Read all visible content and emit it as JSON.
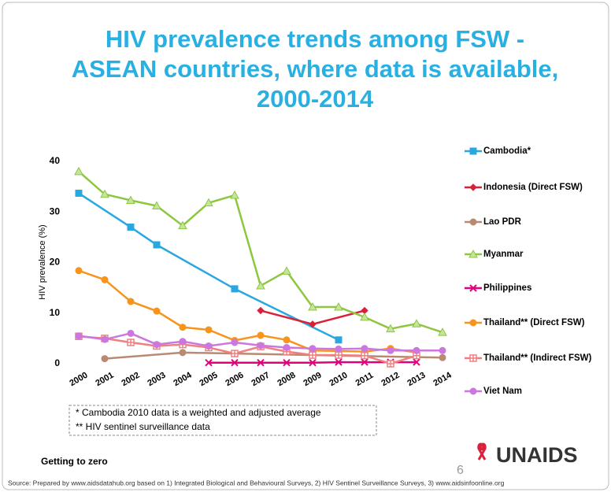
{
  "chart_data": {
    "type": "line",
    "title": "HIV prevalence trends among FSW -\nASEAN countries, where data is available,\n2000-2014",
    "y_label": "HIV prevalence (%)",
    "xlim": [
      2000,
      2014
    ],
    "xticks": [
      2000,
      2001,
      2002,
      2003,
      2004,
      2005,
      2006,
      2007,
      2008,
      2009,
      2010,
      2011,
      2012,
      2013,
      2014
    ],
    "ylim": [
      0,
      40
    ],
    "yticks": [
      0,
      10,
      20,
      30,
      40
    ],
    "legend": "right",
    "series": [
      {
        "name": "Cambodia*",
        "color": "#29a8e0",
        "marker": "square",
        "x": [
          2000,
          2002,
          2003,
          2006,
          2010
        ],
        "values": [
          33.7,
          27,
          23.5,
          14.8,
          4.7
        ]
      },
      {
        "name": "Indonesia (Direct FSW)",
        "color": "#d9213a",
        "marker": "diamond",
        "x": [
          2007,
          2009,
          2011
        ],
        "values": [
          10.5,
          7.8,
          10.5
        ]
      },
      {
        "name": "Lao PDR",
        "color": "#b98a72",
        "marker": "circle",
        "x": [
          2001,
          2004,
          2014
        ],
        "values": [
          1.0,
          2.2,
          1.2
        ]
      },
      {
        "name": "Myanmar",
        "color": "#8dc63f",
        "marker": "triangle",
        "x": [
          2000,
          2001,
          2002,
          2003,
          2004,
          2005,
          2006,
          2007,
          2008,
          2009,
          2010,
          2011,
          2012,
          2013,
          2014
        ],
        "values": [
          38,
          33.5,
          32.3,
          31.2,
          27.3,
          31.8,
          33.3,
          15.4,
          18.3,
          11.2,
          11.2,
          9.2,
          6.9,
          7.9,
          6.2
        ]
      },
      {
        "name": "Philippines",
        "color": "#e2007a",
        "marker": "x",
        "x": [
          2005,
          2006,
          2007,
          2008,
          2009,
          2010,
          2011,
          2012,
          2013
        ],
        "values": [
          0.2,
          0.2,
          0.2,
          0.2,
          0.2,
          0.3,
          0.3,
          0.3,
          0.3
        ]
      },
      {
        "name": "Thailand** (Direct FSW)",
        "color": "#f7941d",
        "marker": "circle",
        "x": [
          2000,
          2001,
          2002,
          2003,
          2004,
          2005,
          2006,
          2007,
          2008,
          2009,
          2010,
          2011,
          2012,
          2013
        ],
        "values": [
          18.4,
          16.6,
          12.3,
          10.4,
          7.2,
          6.7,
          4.6,
          5.6,
          4.7,
          2.6,
          2.5,
          2.4,
          3.0,
          2.2
        ]
      },
      {
        "name": "Thailand** (Indirect FSW)",
        "color": "#f08080",
        "marker": "cross",
        "x": [
          2000,
          2001,
          2002,
          2003,
          2004,
          2005,
          2006,
          2007,
          2008,
          2009,
          2010,
          2011,
          2012,
          2013
        ],
        "values": [
          5.4,
          5.0,
          4.2,
          3.5,
          3.8,
          3.2,
          2.0,
          3.4,
          2.4,
          1.7,
          1.7,
          1.6,
          0,
          1.6
        ]
      },
      {
        "name": "Viet Nam",
        "color": "#cc77e0",
        "marker": "circle",
        "x": [
          2000,
          2001,
          2002,
          2003,
          2004,
          2005,
          2006,
          2007,
          2008,
          2009,
          2010,
          2011,
          2012,
          2013,
          2014
        ],
        "values": [
          5.5,
          4.8,
          6.0,
          3.8,
          4.4,
          3.5,
          4.2,
          3.6,
          3.2,
          3.0,
          2.9,
          3.0,
          2.6,
          2.6,
          2.6
        ]
      }
    ],
    "notes": [
      "* Cambodia 2010 data is a weighted and adjusted average",
      "** HIV sentinel surveillance data"
    ]
  },
  "footer": {
    "tagline": "Getting to zero",
    "page": "6",
    "logo": "UNAIDS",
    "source": "Source: Prepared by www.aidsdatahub.org based on 1) Integrated Biological and Behavioural Surveys, 2) HIV Sentinel Surveillance Surveys, 3) www.aidsinfoonline.org"
  }
}
